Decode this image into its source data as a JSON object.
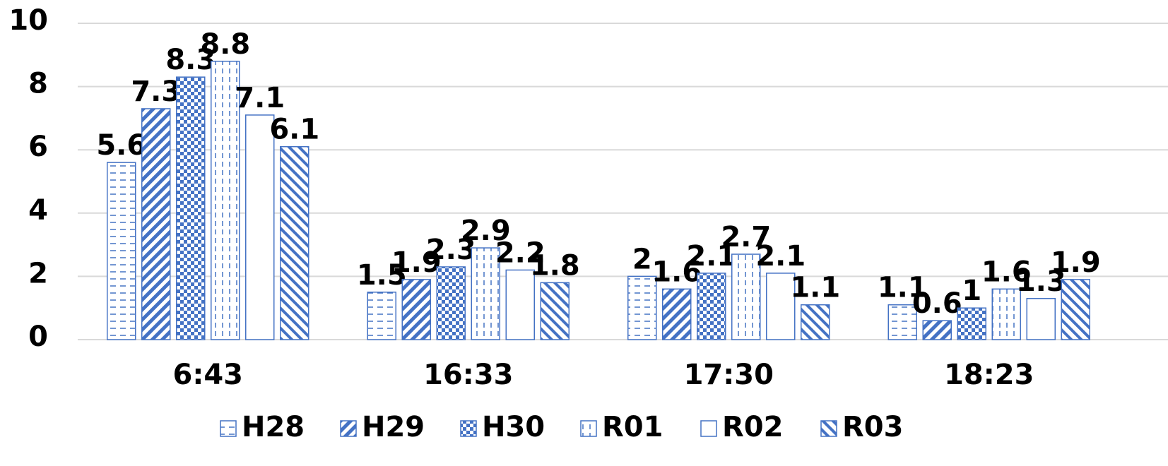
{
  "chart_data": {
    "type": "bar",
    "categories": [
      "6:43",
      "16:33",
      "17:30",
      "18:23"
    ],
    "series": [
      {
        "name": "H28",
        "color": "#4472c4",
        "pattern": "hdash",
        "values": [
          5.6,
          1.5,
          2,
          1.1
        ]
      },
      {
        "name": "H29",
        "color": "#4472c4",
        "pattern": "diag-up",
        "values": [
          7.3,
          1.9,
          1.6,
          0.6
        ]
      },
      {
        "name": "H30",
        "color": "#4472c4",
        "pattern": "checker",
        "values": [
          8.3,
          2.3,
          2.1,
          1
        ]
      },
      {
        "name": "R01",
        "color": "#4472c4",
        "pattern": "vdash",
        "values": [
          8.8,
          2.9,
          2.7,
          1.6
        ]
      },
      {
        "name": "R02",
        "color": "#4472c4",
        "pattern": "none",
        "values": [
          7.1,
          2.2,
          2.1,
          1.3
        ]
      },
      {
        "name": "R03",
        "color": "#4472c4",
        "pattern": "diag-down",
        "values": [
          6.1,
          1.8,
          1.1,
          1.9
        ]
      }
    ],
    "ylim": [
      0,
      10
    ],
    "yticks": [
      0,
      2,
      4,
      6,
      8,
      10
    ],
    "grid": true,
    "legend": "bottom"
  }
}
